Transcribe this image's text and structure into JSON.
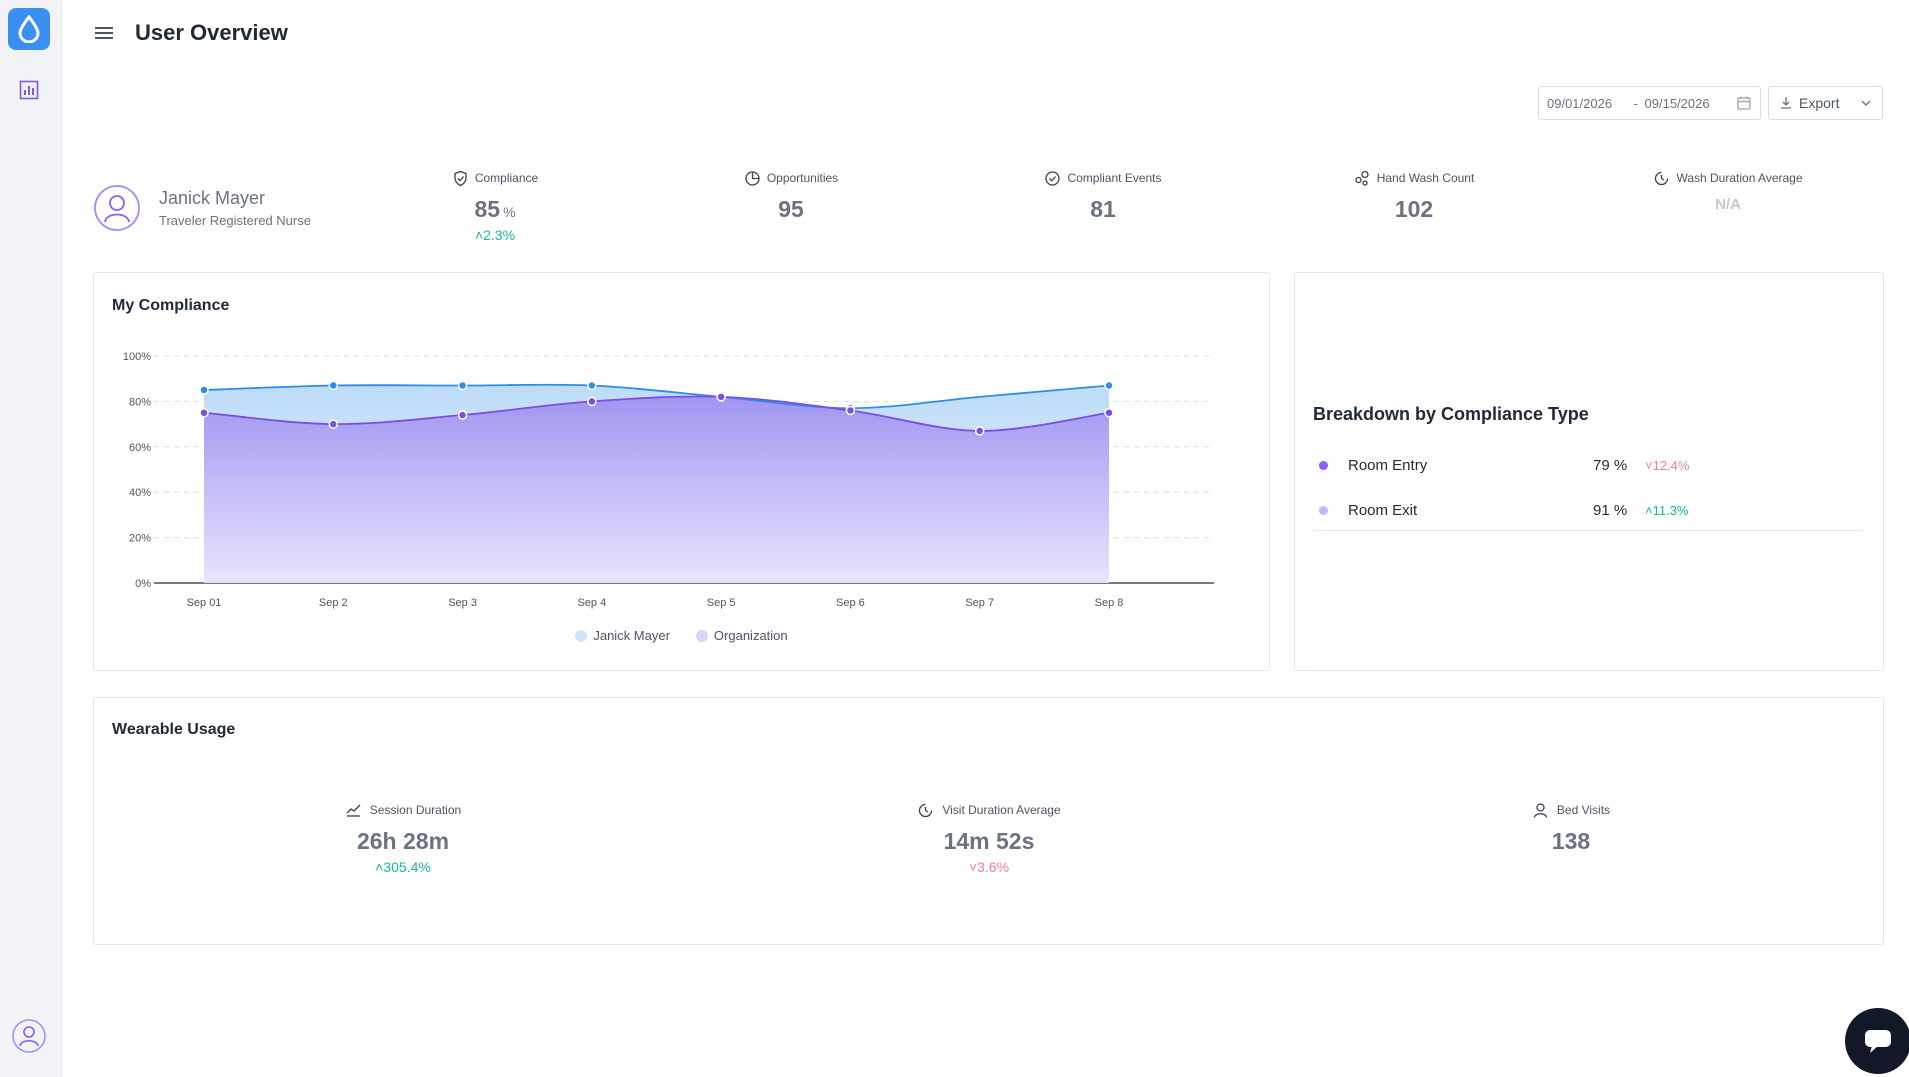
{
  "header": {
    "title": "User Overview"
  },
  "date_range": {
    "start": "09/01/2026",
    "separator": "-",
    "end": "09/15/2026"
  },
  "export": {
    "label": "Export"
  },
  "user": {
    "name": "Janick Mayer",
    "role": "Traveler Registered Nurse"
  },
  "kpis": {
    "compliance": {
      "label": "Compliance",
      "value": "85",
      "unit": "%",
      "delta": "2.3%",
      "trend": "up"
    },
    "opportunities": {
      "label": "Opportunities",
      "value": "95"
    },
    "compliant_events": {
      "label": "Compliant Events",
      "value": "81"
    },
    "hand_wash_count": {
      "label": "Hand Wash Count",
      "value": "102"
    },
    "wash_duration_average": {
      "label": "Wash Duration Average",
      "value": "N/A"
    }
  },
  "my_compliance": {
    "title": "My Compliance"
  },
  "chart_data": {
    "type": "area",
    "title": "My Compliance",
    "categories": [
      "Sep 01",
      "Sep 2",
      "Sep 3",
      "Sep 4",
      "Sep 5",
      "Sep 6",
      "Sep 7",
      "Sep 8"
    ],
    "series": [
      {
        "name": "Janick Mayer",
        "values": [
          85,
          87,
          87,
          87,
          82,
          77,
          null,
          87
        ],
        "color": "#2d8ee8"
      },
      {
        "name": "Organization",
        "values": [
          75,
          70,
          74,
          80,
          82,
          76,
          67,
          75
        ],
        "color": "#7c4fe0"
      }
    ],
    "yticks": [
      "100%",
      "80%",
      "60%",
      "40%",
      "20%",
      "0%"
    ],
    "ylim": [
      0,
      100
    ],
    "grid": true,
    "legend": "bottom"
  },
  "breakdown": {
    "title": "Breakdown by Compliance Type",
    "rows": [
      {
        "name": "Room Entry",
        "pct": "79 %",
        "delta": "12.4%",
        "trend": "down",
        "color": "#8b5cf6"
      },
      {
        "name": "Room Exit",
        "pct": "91 %",
        "delta": "11.3%",
        "trend": "up",
        "color": "#c4b5fd"
      }
    ]
  },
  "wearable_usage": {
    "title": "Wearable Usage",
    "session_duration": {
      "label": "Session Duration",
      "value": "26h 28m",
      "delta": "305.4%",
      "trend": "up"
    },
    "visit_duration_average": {
      "label": "Visit Duration Average",
      "value": "14m 52s",
      "delta": "3.6%",
      "trend": "down"
    },
    "bed_visits": {
      "label": "Bed Visits",
      "value": "138"
    }
  },
  "colors": {
    "accent": "#3b8ff3",
    "up": "#1db5a3",
    "down": "#f07ca6",
    "purple": "#7c4fe0"
  }
}
